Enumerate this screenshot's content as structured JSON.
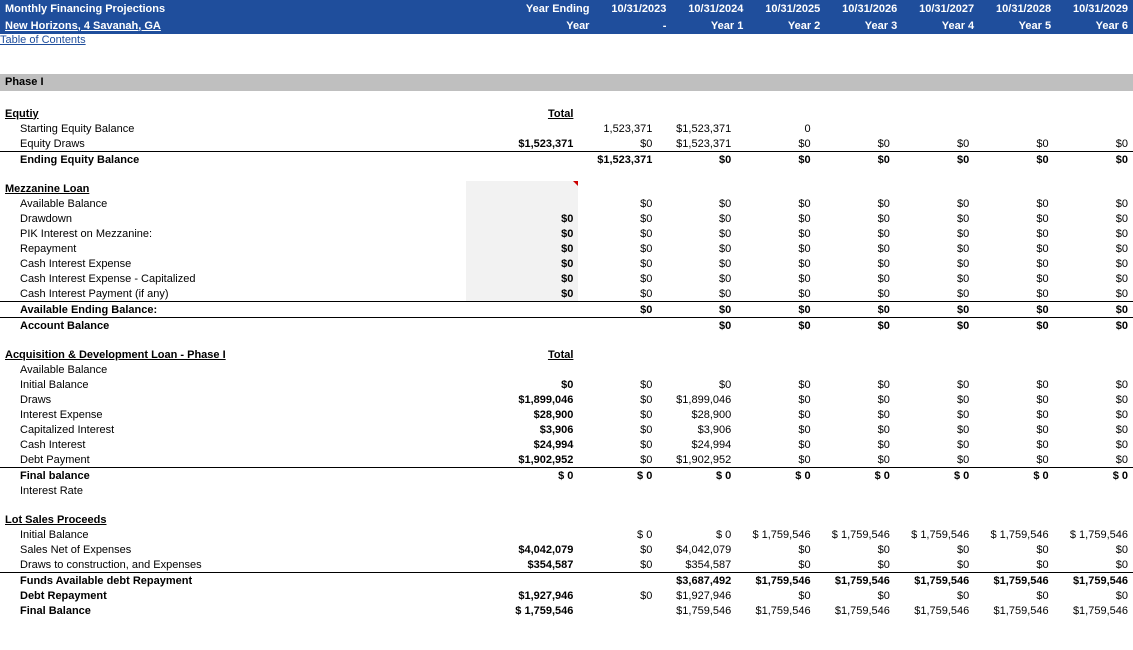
{
  "header": {
    "title1": "Monthly Financing Projections",
    "title2": "New Horizons, 4 Savanah, GA",
    "year_ending_label": "Year Ending",
    "year_label": "Year",
    "dates": [
      "10/31/2023",
      "10/31/2024",
      "10/31/2025",
      "10/31/2026",
      "10/31/2027",
      "10/31/2028",
      "10/31/2029"
    ],
    "years": [
      "-",
      "Year 1",
      "Year 2",
      "Year 3",
      "Year 4",
      "Year 5",
      "Year 6"
    ]
  },
  "toc": "Table of Contents",
  "phase": "Phase I",
  "equity": {
    "title": "Equtiy",
    "total_label": "Total",
    "starting": {
      "label": "Starting Equity Balance",
      "vals": [
        "",
        "1,523,371",
        "$1,523,371",
        "0",
        "",
        "",
        "",
        ""
      ]
    },
    "draws": {
      "label": "Equity Draws",
      "total": "$1,523,371",
      "vals": [
        "",
        "$0",
        "$1,523,371",
        "$0",
        "$0",
        "$0",
        "$0",
        "$0"
      ]
    },
    "ending": {
      "label": "Ending Equity Balance",
      "vals": [
        "",
        "$1,523,371",
        "$0",
        "$0",
        "$0",
        "$0",
        "$0",
        "$0"
      ]
    }
  },
  "mezz": {
    "title": "Mezzanine Loan",
    "available": {
      "label": "Available Balance",
      "vals": [
        "",
        "$0",
        "$0",
        "$0",
        "$0",
        "$0",
        "$0",
        "$0"
      ]
    },
    "drawdown": {
      "label": "Drawdown",
      "total": "$0",
      "vals": [
        "",
        "$0",
        "$0",
        "$0",
        "$0",
        "$0",
        "$0",
        "$0"
      ]
    },
    "pik": {
      "label": "PIK Interest on Mezzanine:",
      "total": "$0",
      "vals": [
        "",
        "$0",
        "$0",
        "$0",
        "$0",
        "$0",
        "$0",
        "$0"
      ]
    },
    "repay": {
      "label": "Repayment",
      "total": "$0",
      "vals": [
        "",
        "$0",
        "$0",
        "$0",
        "$0",
        "$0",
        "$0",
        "$0"
      ]
    },
    "cash_int_exp": {
      "label": "Cash Interest Expense",
      "total": "$0",
      "vals": [
        "",
        "$0",
        "$0",
        "$0",
        "$0",
        "$0",
        "$0",
        "$0"
      ]
    },
    "cash_int_cap": {
      "label": "Cash Interest Expense - Capitalized",
      "total": "$0",
      "vals": [
        "",
        "$0",
        "$0",
        "$0",
        "$0",
        "$0",
        "$0",
        "$0"
      ]
    },
    "cash_int_pay": {
      "label": "Cash Interest Payment (if any)",
      "total": "$0",
      "vals": [
        "",
        "$0",
        "$0",
        "$0",
        "$0",
        "$0",
        "$0",
        "$0"
      ]
    },
    "avail_end": {
      "label": "Available Ending Balance:",
      "vals": [
        "",
        "$0",
        "$0",
        "$0",
        "$0",
        "$0",
        "$0",
        "$0"
      ]
    },
    "acct_bal": {
      "label": "Account Balance",
      "vals": [
        "",
        "",
        "$0",
        "$0",
        "$0",
        "$0",
        "$0",
        "$0"
      ]
    }
  },
  "acq": {
    "title": "Acquisition & Development Loan - Phase I",
    "total_label": "Total",
    "available": {
      "label": "Available Balance"
    },
    "initial": {
      "label": "Initial Balance",
      "total": "$0",
      "vals": [
        "",
        "$0",
        "$0",
        "$0",
        "$0",
        "$0",
        "$0",
        "$0"
      ]
    },
    "draws": {
      "label": "Draws",
      "total": "$1,899,046",
      "vals": [
        "",
        "$0",
        "$1,899,046",
        "$0",
        "$0",
        "$0",
        "$0",
        "$0"
      ]
    },
    "int_exp": {
      "label": "Interest Expense",
      "total": "$28,900",
      "vals": [
        "",
        "$0",
        "$28,900",
        "$0",
        "$0",
        "$0",
        "$0",
        "$0"
      ]
    },
    "cap_int": {
      "label": "Capitalized Interest",
      "total": "$3,906",
      "vals": [
        "",
        "$0",
        "$3,906",
        "$0",
        "$0",
        "$0",
        "$0",
        "$0"
      ]
    },
    "cash_int": {
      "label": "Cash Interest",
      "total": "$24,994",
      "vals": [
        "",
        "$0",
        "$24,994",
        "$0",
        "$0",
        "$0",
        "$0",
        "$0"
      ]
    },
    "debt_pay": {
      "label": "Debt Payment",
      "total": "$1,902,952",
      "vals": [
        "",
        "$0",
        "$1,902,952",
        "$0",
        "$0",
        "$0",
        "$0",
        "$0"
      ]
    },
    "final": {
      "label": "Final balance",
      "total": "$ 0",
      "vals": [
        "",
        "$ 0",
        "$ 0",
        "$ 0",
        "$ 0",
        "$ 0",
        "$ 0",
        "$ 0"
      ]
    },
    "int_rate": {
      "label": "Interest Rate"
    }
  },
  "lot": {
    "title": "Lot Sales Proceeds",
    "initial": {
      "label": "Initial Balance",
      "vals": [
        "",
        "$ 0",
        "$ 0",
        "$ 1,759,546",
        "$ 1,759,546",
        "$ 1,759,546",
        "$ 1,759,546",
        "$ 1,759,546"
      ]
    },
    "sales": {
      "label": "Sales Net of Expenses",
      "total": "$4,042,079",
      "vals": [
        "",
        "$0",
        "$4,042,079",
        "$0",
        "$0",
        "$0",
        "$0",
        "$0"
      ]
    },
    "draws_constr": {
      "label": "Draws to construction, and Expenses",
      "total": "$354,587",
      "vals": [
        "",
        "$0",
        "$354,587",
        "$0",
        "$0",
        "$0",
        "$0",
        "$0"
      ]
    },
    "funds": {
      "label": "Funds Available debt Repayment",
      "vals": [
        "",
        "",
        "$3,687,492",
        "$1,759,546",
        "$1,759,546",
        "$1,759,546",
        "$1,759,546",
        "$1,759,546"
      ]
    },
    "debt_repay": {
      "label": "Debt Repayment",
      "total": "$1,927,946",
      "vals": [
        "",
        "$0",
        "$1,927,946",
        "$0",
        "$0",
        "$0",
        "$0",
        "$0"
      ]
    },
    "final": {
      "label": "Final Balance",
      "total": "$ 1,759,546",
      "vals": [
        "",
        "",
        "$1,759,546",
        "$1,759,546",
        "$1,759,546",
        "$1,759,546",
        "$1,759,546",
        "$1,759,546"
      ]
    }
  },
  "style": {
    "header_bg": "#1f4e9c",
    "header_fg": "#ffffff",
    "phase_bg": "#bfbfbf",
    "shade_bg": "#f2f2f2",
    "font": "Arial",
    "font_size": 11
  }
}
